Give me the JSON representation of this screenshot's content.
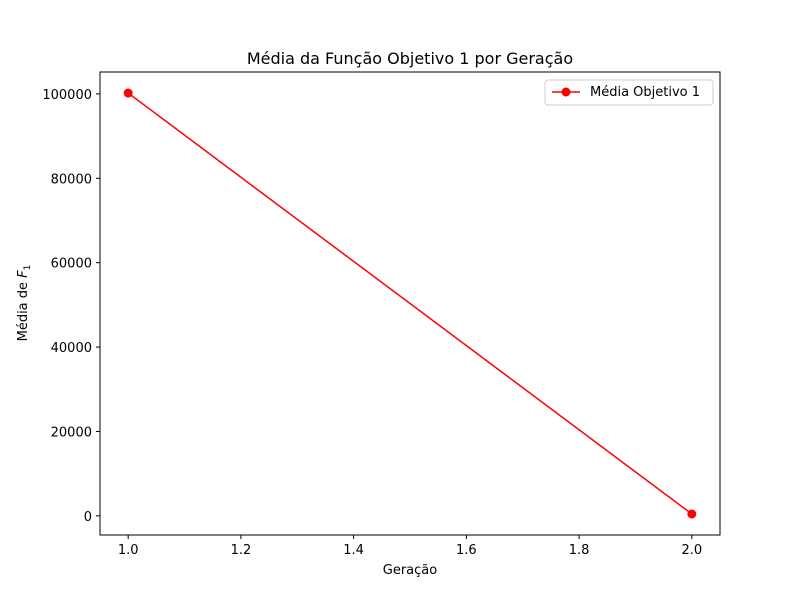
{
  "chart_data": {
    "type": "line",
    "title": "Média da Função Objetivo 1 por Geração",
    "xlabel": "Geração",
    "ylabel_prefix": "Média de ",
    "ylabel_symbol": "F",
    "ylabel_subscript": "1",
    "x": [
      1.0,
      2.0
    ],
    "series": [
      {
        "name": "Média Objetivo 1",
        "values": [
          100200,
          450
        ],
        "color": "#ff0000",
        "marker": "circle"
      }
    ],
    "xlim": [
      0.95,
      2.05
    ],
    "ylim": [
      -4540,
      105190
    ],
    "xticks": [
      1.0,
      1.2,
      1.4,
      1.6,
      1.8,
      2.0
    ],
    "xtick_labels": [
      "1.0",
      "1.2",
      "1.4",
      "1.6",
      "1.8",
      "2.0"
    ],
    "yticks": [
      0,
      20000,
      40000,
      60000,
      80000,
      100000
    ],
    "ytick_labels": [
      "0",
      "20000",
      "40000",
      "60000",
      "80000",
      "100000"
    ],
    "grid": false,
    "legend_position": "upper right"
  }
}
